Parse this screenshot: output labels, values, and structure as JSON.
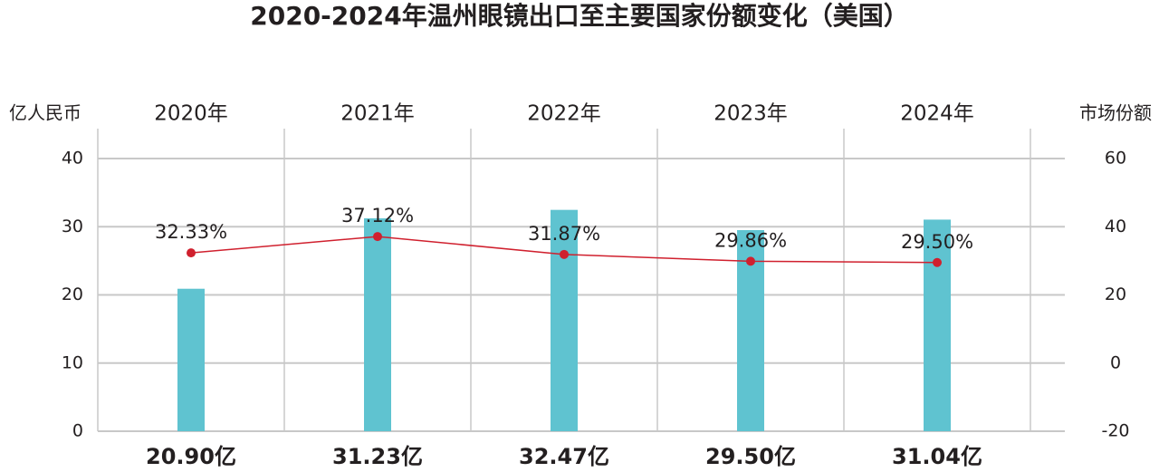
{
  "chart_data": {
    "type": "bar",
    "title": "2020-2024年温州眼镜出口至主要国家份额变化（美国）",
    "y_label": "亿人民币",
    "y2_label": "市场份额",
    "categories": [
      "2020年",
      "2021年",
      "2022年",
      "2023年",
      "2024年"
    ],
    "series": [
      {
        "type": "bar",
        "color": "#5fc3d0",
        "values": [
          20.9,
          31.23,
          32.47,
          29.5,
          31.04
        ],
        "value_labels": [
          "20.90亿",
          "31.23亿",
          "32.47亿",
          "29.50亿",
          "31.04亿"
        ]
      },
      {
        "type": "line",
        "axis": "y2",
        "color": "#d0202e",
        "values": [
          32.33,
          37.12,
          31.87,
          29.86,
          29.5
        ],
        "value_labels": [
          "32.33%",
          "37.12%",
          "31.87%",
          "29.86%",
          "29.50%"
        ]
      }
    ],
    "ylim": [
      0,
      40
    ],
    "yticks": [
      0,
      10,
      20,
      30,
      40
    ],
    "y2lim": [
      -20,
      60
    ],
    "y2ticks": [
      -20,
      0,
      20,
      40,
      60
    ],
    "grid": true
  }
}
